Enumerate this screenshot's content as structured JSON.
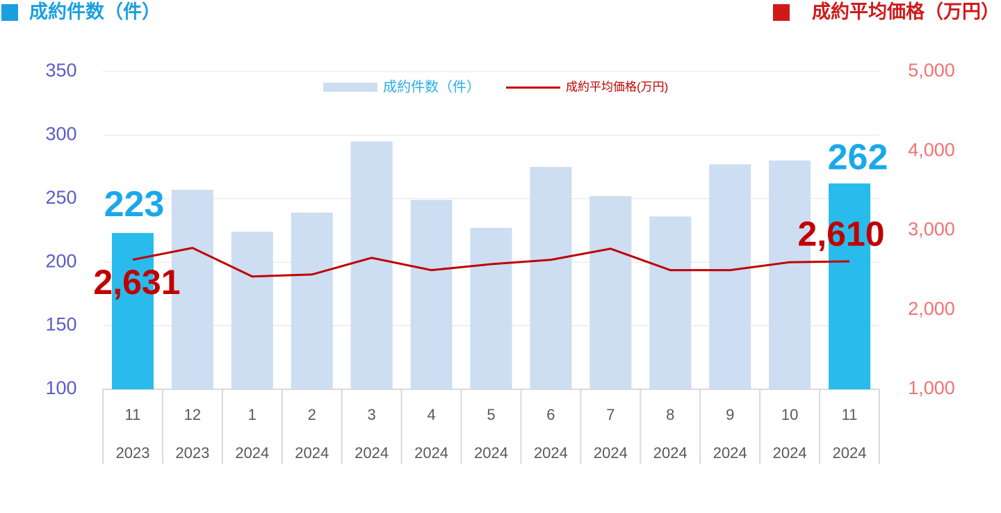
{
  "chart_data": {
    "type": "bar_line",
    "y_label": "成約件数（件）",
    "y2_label": "成約平均価格（万円）",
    "categories": [
      "11",
      "12",
      "1",
      "2",
      "3",
      "4",
      "5",
      "6",
      "7",
      "8",
      "9",
      "10",
      "11"
    ],
    "category_years": [
      "2023",
      "2023",
      "2024",
      "2024",
      "2024",
      "2024",
      "2024",
      "2024",
      "2024",
      "2024",
      "2024",
      "2024",
      "2024"
    ],
    "series": [
      {
        "name": "成約件数（件）",
        "type": "bar",
        "color": "#cdddf2",
        "bar_colors": [
          "#29bbec",
          "#cdddf2",
          "#cdddf2",
          "#cdddf2",
          "#cdddf2",
          "#cdddf2",
          "#cdddf2",
          "#cdddf2",
          "#cdddf2",
          "#cdddf2",
          "#cdddf2",
          "#cdddf2",
          "#29bbec"
        ],
        "values": [
          223,
          257,
          224,
          239,
          295,
          249,
          227,
          275,
          252,
          236,
          277,
          280,
          262
        ],
        "value_labels": [
          "223",
          null,
          null,
          null,
          null,
          null,
          null,
          null,
          null,
          null,
          null,
          null,
          "262"
        ],
        "label_color": "#1aa9e8"
      },
      {
        "name": "成約平均価格(万円)",
        "type": "line",
        "axis": "y2",
        "color": "#c00000",
        "values": [
          2631,
          2780,
          2420,
          2445,
          2655,
          2500,
          2575,
          2630,
          2770,
          2500,
          2500,
          2600,
          2610
        ],
        "value_labels": [
          "2,631",
          null,
          null,
          null,
          null,
          null,
          null,
          null,
          null,
          null,
          null,
          null,
          "2,610"
        ],
        "label_color": "#c00000"
      }
    ],
    "ylim": [
      100,
      350
    ],
    "yticks": [
      100,
      150,
      200,
      250,
      300,
      350
    ],
    "y2lim": [
      1000,
      5000
    ],
    "y2ticks": [
      {
        "value": 1000,
        "label": "1,000"
      },
      {
        "value": 2000,
        "label": "2,000"
      },
      {
        "value": 3000,
        "label": "3,000"
      },
      {
        "value": 4000,
        "label": "4,000"
      },
      {
        "value": 5000,
        "label": "5,000"
      }
    ],
    "ytick_color": "#5b5bc8",
    "y2tick_color": "#f47272",
    "grid": true,
    "legend": "top"
  }
}
